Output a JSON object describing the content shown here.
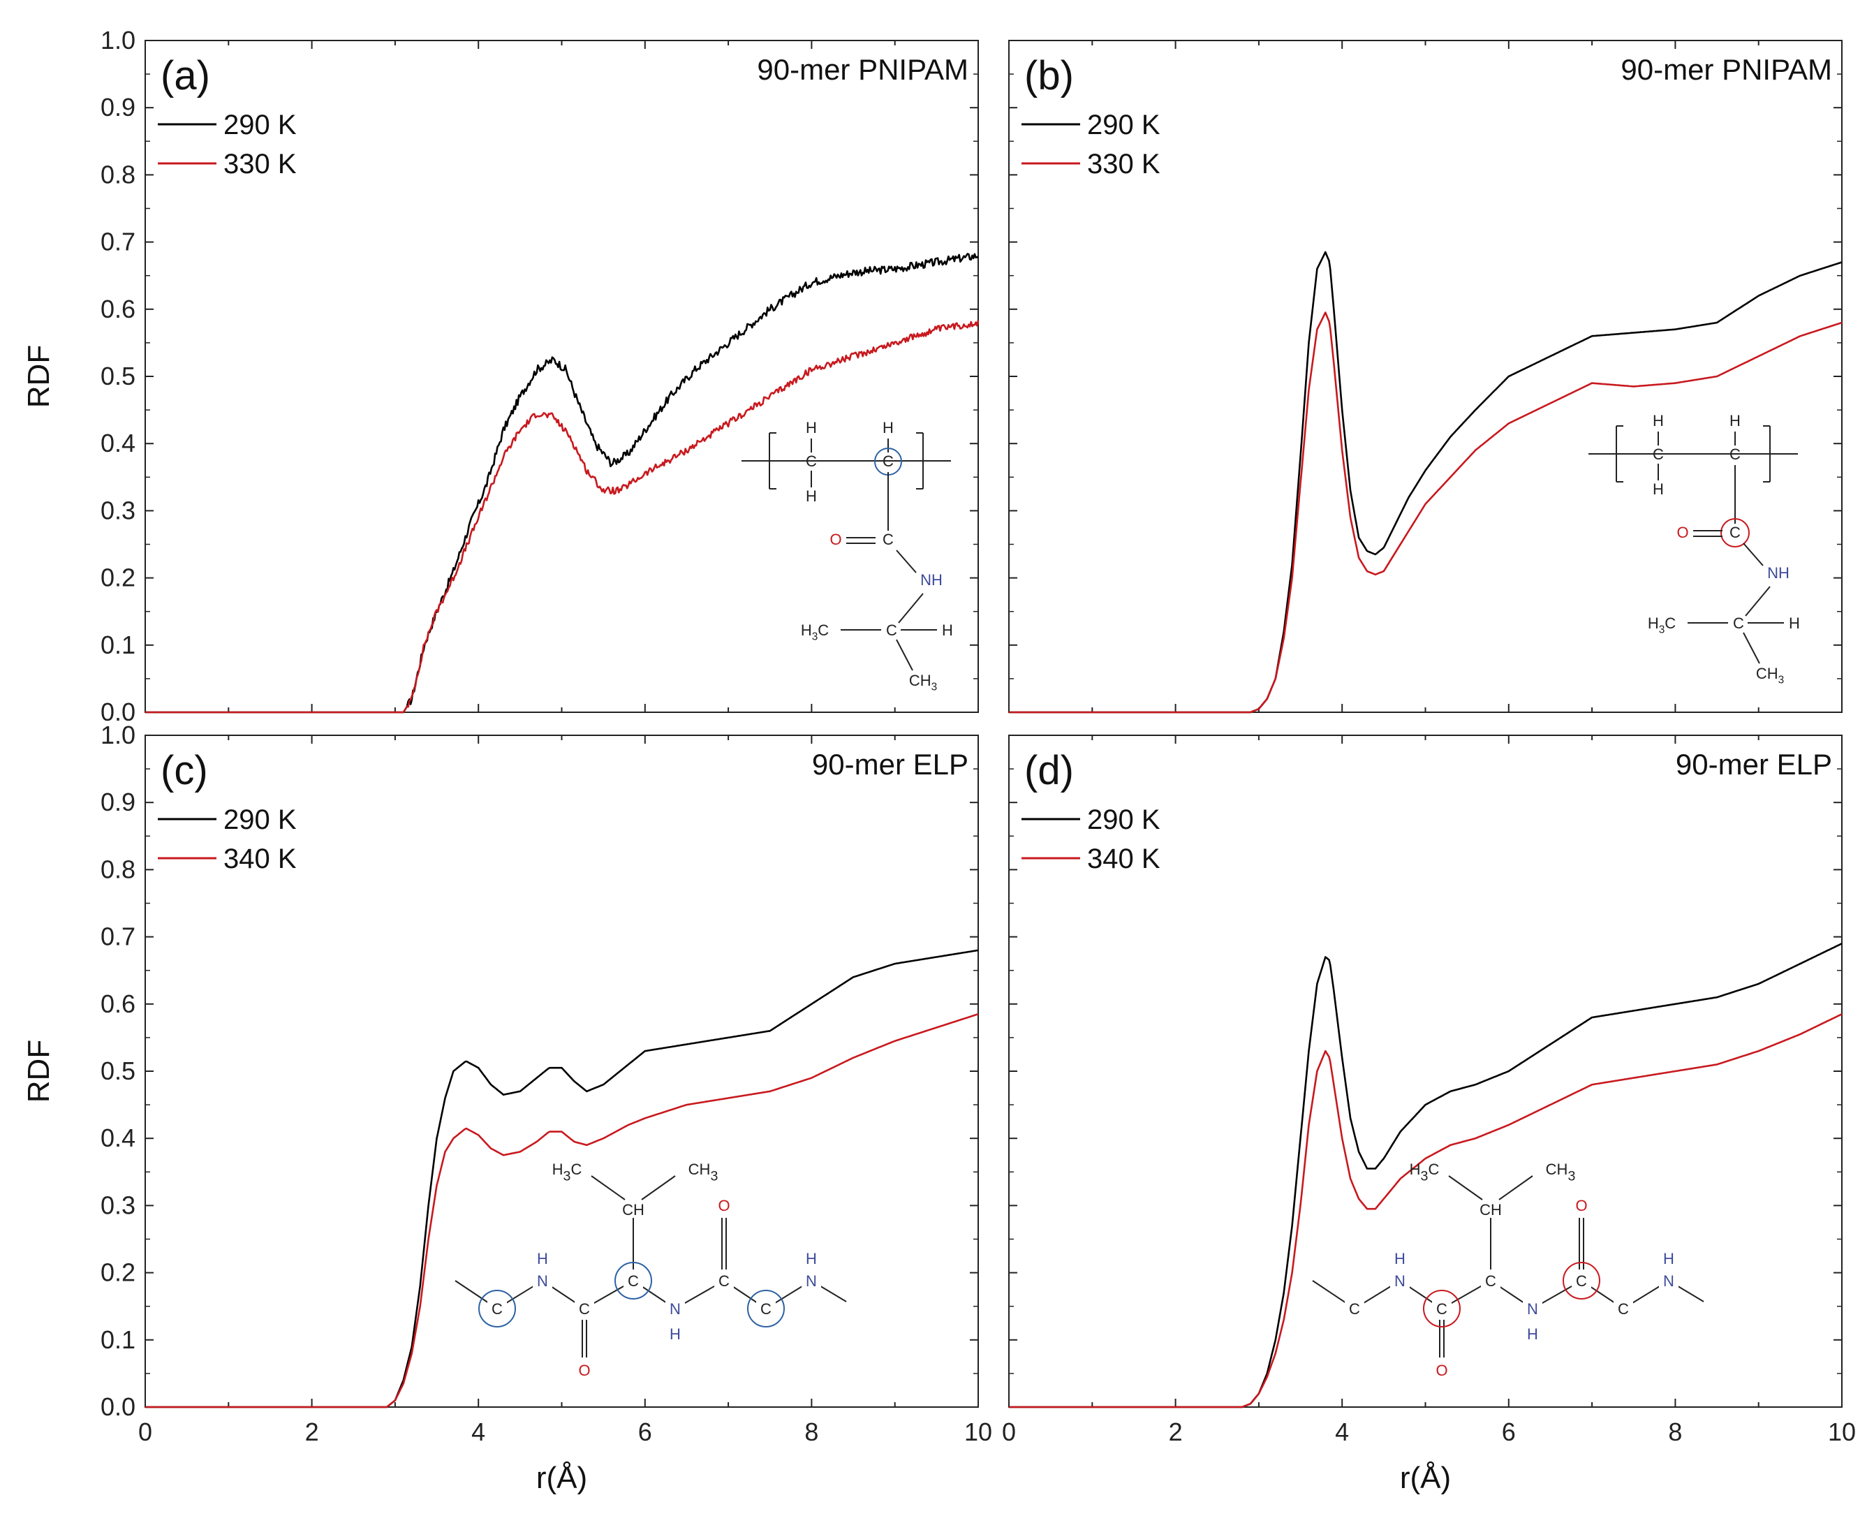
{
  "colors": {
    "series1": "#000000",
    "series2": "#c8191e",
    "highlight_blue": "#2e62a3",
    "highlight_red": "#c8191e",
    "hetero": "#3d4b9a"
  },
  "axes": {
    "xlabel": "r(Å)",
    "ylabel": "RDF"
  },
  "chart_data": [
    {
      "type": "line",
      "panel_label": "(a)",
      "title": "90-mer PNIPAM",
      "xlabel": "",
      "ylabel": "RDF",
      "xlim": [
        0,
        10
      ],
      "ylim": [
        0,
        1.0
      ],
      "xticks": [
        "0",
        "2",
        "4",
        "6",
        "8",
        "10"
      ],
      "yticks": [
        "0.0",
        "0.1",
        "0.2",
        "0.3",
        "0.4",
        "0.5",
        "0.6",
        "0.7",
        "0.8",
        "0.9",
        "1.0"
      ],
      "legend_position": "top-left",
      "series": [
        {
          "name": "290 K",
          "color": "#000000",
          "noise": 0.006,
          "x": [
            0,
            3.1,
            3.2,
            3.35,
            3.5,
            3.7,
            3.9,
            4.1,
            4.3,
            4.5,
            4.7,
            4.9,
            5.05,
            5.2,
            5.4,
            5.6,
            5.8,
            6.0,
            6.3,
            6.6,
            7.0,
            7.5,
            8.0,
            8.5,
            9.0,
            9.5,
            10.0
          ],
          "y": [
            0,
            0,
            0.02,
            0.1,
            0.15,
            0.21,
            0.28,
            0.34,
            0.42,
            0.47,
            0.51,
            0.525,
            0.51,
            0.46,
            0.4,
            0.37,
            0.385,
            0.42,
            0.47,
            0.51,
            0.55,
            0.6,
            0.64,
            0.655,
            0.66,
            0.67,
            0.68
          ]
        },
        {
          "name": "330 K",
          "color": "#c8191e",
          "noise": 0.005,
          "x": [
            0,
            3.1,
            3.2,
            3.35,
            3.5,
            3.7,
            3.9,
            4.1,
            4.3,
            4.5,
            4.7,
            4.9,
            5.1,
            5.3,
            5.5,
            5.7,
            6.0,
            6.5,
            7.0,
            7.5,
            8.0,
            8.5,
            9.0,
            9.5,
            10.0
          ],
          "y": [
            0,
            0,
            0.02,
            0.1,
            0.15,
            0.2,
            0.26,
            0.32,
            0.38,
            0.42,
            0.445,
            0.44,
            0.41,
            0.36,
            0.33,
            0.33,
            0.355,
            0.39,
            0.43,
            0.47,
            0.51,
            0.53,
            0.55,
            0.57,
            0.58
          ]
        }
      ]
    },
    {
      "type": "line",
      "panel_label": "(b)",
      "title": "90-mer PNIPAM",
      "xlabel": "",
      "ylabel": "",
      "xlim": [
        0,
        10
      ],
      "ylim": [
        0,
        1.0
      ],
      "xticks": [
        "0",
        "2",
        "4",
        "6",
        "8",
        "10"
      ],
      "yticks": [],
      "legend_position": "top-left",
      "series": [
        {
          "name": "290 K",
          "color": "#000000",
          "noise": 0,
          "x": [
            0,
            2.9,
            3.0,
            3.1,
            3.2,
            3.3,
            3.4,
            3.5,
            3.6,
            3.7,
            3.8,
            3.85,
            3.9,
            4.0,
            4.1,
            4.2,
            4.3,
            4.4,
            4.5,
            4.6,
            4.8,
            5.0,
            5.3,
            5.6,
            6.0,
            6.5,
            7.0,
            7.5,
            8.0,
            8.5,
            9.0,
            9.5,
            10.0
          ],
          "y": [
            0,
            0,
            0.005,
            0.02,
            0.05,
            0.12,
            0.22,
            0.38,
            0.55,
            0.66,
            0.685,
            0.67,
            0.6,
            0.45,
            0.33,
            0.26,
            0.24,
            0.235,
            0.245,
            0.27,
            0.32,
            0.36,
            0.41,
            0.45,
            0.5,
            0.53,
            0.56,
            0.565,
            0.57,
            0.58,
            0.62,
            0.65,
            0.67
          ]
        },
        {
          "name": "330 K",
          "color": "#c8191e",
          "noise": 0,
          "x": [
            0,
            2.9,
            3.0,
            3.1,
            3.2,
            3.3,
            3.4,
            3.5,
            3.6,
            3.7,
            3.8,
            3.85,
            3.9,
            4.0,
            4.1,
            4.2,
            4.3,
            4.4,
            4.5,
            4.6,
            4.8,
            5.0,
            5.3,
            5.6,
            6.0,
            6.5,
            7.0,
            7.5,
            8.0,
            8.5,
            9.0,
            9.5,
            10.0
          ],
          "y": [
            0,
            0,
            0.005,
            0.02,
            0.05,
            0.11,
            0.2,
            0.34,
            0.48,
            0.57,
            0.595,
            0.58,
            0.52,
            0.39,
            0.29,
            0.23,
            0.21,
            0.205,
            0.21,
            0.23,
            0.27,
            0.31,
            0.35,
            0.39,
            0.43,
            0.46,
            0.49,
            0.485,
            0.49,
            0.5,
            0.53,
            0.56,
            0.58
          ]
        }
      ]
    },
    {
      "type": "line",
      "panel_label": "(c)",
      "title": "90-mer ELP",
      "xlabel": "r(Å)",
      "ylabel": "RDF",
      "xlim": [
        0,
        10
      ],
      "ylim": [
        0,
        1.0
      ],
      "xticks": [
        "0",
        "2",
        "4",
        "6",
        "8",
        "10"
      ],
      "yticks": [
        "0.0",
        "0.1",
        "0.2",
        "0.3",
        "0.4",
        "0.5",
        "0.6",
        "0.7",
        "0.8",
        "0.9",
        "1.0"
      ],
      "legend_position": "top-left",
      "series": [
        {
          "name": "290 K",
          "color": "#000000",
          "noise": 0,
          "x": [
            0,
            2.9,
            3.0,
            3.1,
            3.2,
            3.3,
            3.4,
            3.5,
            3.6,
            3.7,
            3.85,
            4.0,
            4.15,
            4.3,
            4.5,
            4.7,
            4.85,
            5.0,
            5.15,
            5.3,
            5.5,
            5.8,
            6.0,
            6.5,
            7.0,
            7.5,
            8.0,
            8.5,
            9.0,
            9.5,
            10.0
          ],
          "y": [
            0,
            0,
            0.01,
            0.04,
            0.09,
            0.18,
            0.3,
            0.4,
            0.46,
            0.5,
            0.515,
            0.505,
            0.48,
            0.465,
            0.47,
            0.49,
            0.505,
            0.505,
            0.485,
            0.47,
            0.48,
            0.51,
            0.53,
            0.54,
            0.55,
            0.56,
            0.6,
            0.64,
            0.66,
            0.67,
            0.68
          ]
        },
        {
          "name": "340 K",
          "color": "#c8191e",
          "noise": 0,
          "x": [
            0,
            2.9,
            3.0,
            3.1,
            3.2,
            3.3,
            3.4,
            3.5,
            3.6,
            3.7,
            3.85,
            4.0,
            4.15,
            4.3,
            4.5,
            4.7,
            4.85,
            5.0,
            5.15,
            5.3,
            5.5,
            5.8,
            6.0,
            6.5,
            7.0,
            7.5,
            8.0,
            8.5,
            9.0,
            9.5,
            10.0
          ],
          "y": [
            0,
            0,
            0.01,
            0.035,
            0.08,
            0.15,
            0.25,
            0.33,
            0.38,
            0.4,
            0.415,
            0.405,
            0.385,
            0.375,
            0.38,
            0.395,
            0.41,
            0.41,
            0.395,
            0.39,
            0.4,
            0.42,
            0.43,
            0.45,
            0.46,
            0.47,
            0.49,
            0.52,
            0.545,
            0.565,
            0.585
          ]
        }
      ]
    },
    {
      "type": "line",
      "panel_label": "(d)",
      "title": "90-mer ELP",
      "xlabel": "r(Å)",
      "ylabel": "",
      "xlim": [
        0,
        10
      ],
      "ylim": [
        0,
        1.0
      ],
      "xticks": [
        "0",
        "2",
        "4",
        "6",
        "8",
        "10"
      ],
      "yticks": [],
      "legend_position": "top-left",
      "series": [
        {
          "name": "290 K",
          "color": "#000000",
          "noise": 0,
          "x": [
            0,
            2.8,
            2.9,
            3.0,
            3.1,
            3.2,
            3.3,
            3.4,
            3.5,
            3.6,
            3.7,
            3.8,
            3.85,
            3.9,
            4.0,
            4.1,
            4.2,
            4.3,
            4.4,
            4.5,
            4.7,
            5.0,
            5.3,
            5.6,
            6.0,
            6.5,
            7.0,
            7.5,
            8.0,
            8.5,
            9.0,
            9.5,
            10.0
          ],
          "y": [
            0,
            0,
            0.005,
            0.02,
            0.05,
            0.1,
            0.17,
            0.27,
            0.4,
            0.53,
            0.63,
            0.67,
            0.665,
            0.62,
            0.52,
            0.43,
            0.38,
            0.355,
            0.355,
            0.37,
            0.41,
            0.45,
            0.47,
            0.48,
            0.5,
            0.54,
            0.58,
            0.59,
            0.6,
            0.61,
            0.63,
            0.66,
            0.69
          ]
        },
        {
          "name": "340 K",
          "color": "#c8191e",
          "noise": 0,
          "x": [
            0,
            2.8,
            2.9,
            3.0,
            3.1,
            3.2,
            3.3,
            3.4,
            3.5,
            3.6,
            3.7,
            3.8,
            3.85,
            3.9,
            4.0,
            4.1,
            4.2,
            4.3,
            4.4,
            4.5,
            4.7,
            5.0,
            5.3,
            5.6,
            6.0,
            6.5,
            7.0,
            7.5,
            8.0,
            8.5,
            9.0,
            9.5,
            10.0
          ],
          "y": [
            0,
            0,
            0.005,
            0.02,
            0.045,
            0.08,
            0.13,
            0.2,
            0.3,
            0.42,
            0.5,
            0.53,
            0.52,
            0.48,
            0.4,
            0.34,
            0.31,
            0.295,
            0.295,
            0.31,
            0.34,
            0.37,
            0.39,
            0.4,
            0.42,
            0.45,
            0.48,
            0.49,
            0.5,
            0.51,
            0.53,
            0.555,
            0.585
          ]
        }
      ]
    }
  ],
  "structures": {
    "pnipam": {
      "h": "H",
      "c": "C",
      "o": "O",
      "nh": "NH",
      "h3c": "H3C",
      "ch3": "CH3"
    },
    "elp": {
      "h3c": "H3C",
      "ch3": "CH3",
      "ch": "CH",
      "c": "C",
      "o": "O",
      "h": "H",
      "n": "N"
    }
  }
}
